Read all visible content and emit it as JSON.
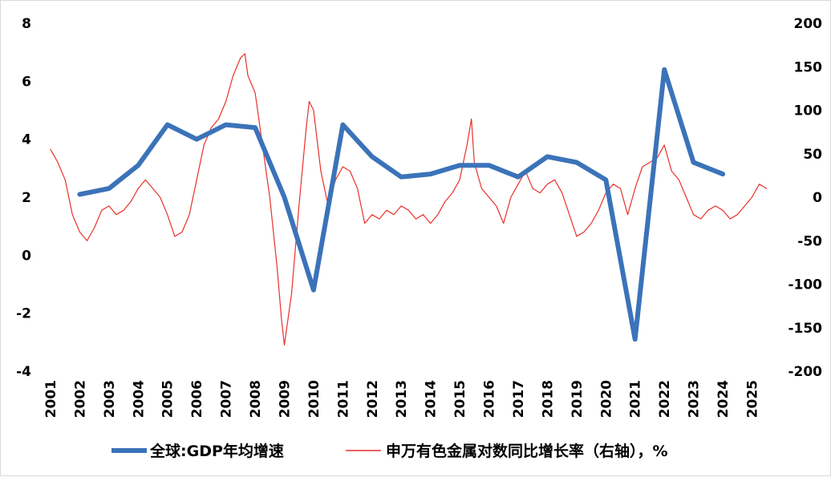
{
  "chart_data": {
    "type": "line",
    "title": "",
    "xlabel": "",
    "ylabel": "",
    "y2label": "",
    "x_ticks": [
      "2001",
      "2002",
      "2003",
      "2004",
      "2005",
      "2006",
      "2007",
      "2008",
      "2009",
      "2010",
      "2011",
      "2012",
      "2013",
      "2014",
      "2015",
      "2016",
      "2017",
      "2018",
      "2019",
      "2020",
      "2021",
      "2022",
      "2023",
      "2024",
      "2025"
    ],
    "y_left_ticks": [
      "8",
      "6",
      "4",
      "2",
      "0",
      "-2",
      "-4"
    ],
    "y_right_ticks": [
      "200",
      "150",
      "100",
      "50",
      "0",
      "-50",
      "-100",
      "-150",
      "-200"
    ],
    "ylim_left": [
      -4,
      8
    ],
    "ylim_right": [
      -200,
      200
    ],
    "xlim": [
      2001,
      2025.7
    ],
    "legend_position": "bottom",
    "grid": false,
    "series": [
      {
        "name": "全球:GDP年均增速",
        "axis": "left",
        "color": "#3b73b9",
        "x": [
          2002,
          2003,
          2004,
          2005,
          2006,
          2007,
          2008,
          2009,
          2010,
          2011,
          2012,
          2013,
          2014,
          2015,
          2016,
          2017,
          2018,
          2019,
          2020,
          2021,
          2022,
          2023,
          2024
        ],
        "y": [
          2.1,
          2.3,
          3.1,
          4.5,
          4.0,
          4.5,
          4.4,
          2.0,
          -1.2,
          4.5,
          3.4,
          2.7,
          2.8,
          3.1,
          3.1,
          2.7,
          3.4,
          3.2,
          2.6,
          -2.9,
          6.4,
          3.2,
          2.8
        ]
      },
      {
        "name": "申万有色金属对数同比增长率（右轴），%",
        "axis": "right",
        "color": "#e8312b",
        "x": [
          2001.0,
          2001.25,
          2001.5,
          2001.75,
          2002.0,
          2002.25,
          2002.5,
          2002.75,
          2003.0,
          2003.25,
          2003.5,
          2003.75,
          2004.0,
          2004.25,
          2004.5,
          2004.75,
          2005.0,
          2005.25,
          2005.5,
          2005.75,
          2006.0,
          2006.25,
          2006.5,
          2006.75,
          2007.0,
          2007.25,
          2007.5,
          2007.65,
          2007.75,
          2008.0,
          2008.25,
          2008.5,
          2008.75,
          2008.9,
          2009.0,
          2009.25,
          2009.5,
          2009.75,
          2009.85,
          2010.0,
          2010.25,
          2010.5,
          2010.75,
          2011.0,
          2011.25,
          2011.5,
          2011.75,
          2012.0,
          2012.25,
          2012.5,
          2012.75,
          2013.0,
          2013.25,
          2013.5,
          2013.75,
          2014.0,
          2014.25,
          2014.5,
          2014.75,
          2015.0,
          2015.25,
          2015.4,
          2015.5,
          2015.75,
          2016.0,
          2016.25,
          2016.5,
          2016.75,
          2017.0,
          2017.25,
          2017.5,
          2017.75,
          2018.0,
          2018.25,
          2018.5,
          2018.75,
          2019.0,
          2019.25,
          2019.5,
          2019.75,
          2020.0,
          2020.25,
          2020.5,
          2020.75,
          2021.0,
          2021.25,
          2021.5,
          2021.75,
          2022.0,
          2022.25,
          2022.5,
          2022.75,
          2023.0,
          2023.25,
          2023.5,
          2023.75,
          2024.0,
          2024.25,
          2024.5,
          2024.75,
          2025.0,
          2025.25,
          2025.5
        ],
        "y": [
          55,
          40,
          20,
          -20,
          -40,
          -50,
          -35,
          -15,
          -10,
          -20,
          -15,
          -5,
          10,
          20,
          10,
          0,
          -20,
          -45,
          -40,
          -20,
          20,
          60,
          80,
          90,
          110,
          140,
          160,
          165,
          140,
          120,
          60,
          0,
          -80,
          -140,
          -170,
          -110,
          -10,
          80,
          110,
          100,
          30,
          -10,
          20,
          35,
          30,
          10,
          -30,
          -20,
          -25,
          -15,
          -20,
          -10,
          -15,
          -25,
          -20,
          -30,
          -20,
          -5,
          5,
          20,
          60,
          90,
          40,
          10,
          0,
          -10,
          -30,
          0,
          15,
          30,
          10,
          5,
          15,
          20,
          5,
          -20,
          -45,
          -40,
          -30,
          -15,
          5,
          15,
          10,
          -20,
          10,
          35,
          40,
          45,
          60,
          30,
          20,
          0,
          -20,
          -25,
          -15,
          -10,
          -15,
          -25,
          -20,
          -10,
          0,
          15,
          10
        ]
      }
    ]
  }
}
